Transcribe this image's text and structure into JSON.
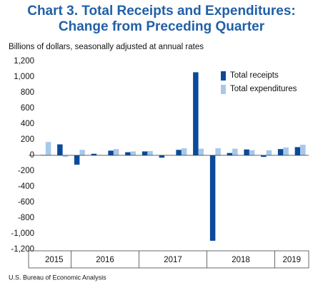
{
  "chart_data": {
    "type": "bar",
    "title": "Chart 3. Total Receipts and Expenditures:",
    "title_line2": "Change from Preceding Quarter",
    "subtitle": "Billions of dollars, seasonally adjusted at annual rates",
    "source": "U.S. Bureau of Economic Analysis",
    "categories": [
      "2015",
      null,
      "2016",
      null,
      null,
      null,
      "2017",
      null,
      null,
      null,
      "2018",
      null,
      null,
      null,
      "2019",
      null
    ],
    "series": [
      {
        "name": "Total receipts",
        "color": "#0b4a9a",
        "values": [
          5,
          140,
          -120,
          20,
          60,
          40,
          50,
          -30,
          70,
          1060,
          -1090,
          30,
          75,
          -20,
          80,
          105
        ]
      },
      {
        "name": "Total expenditures",
        "color": "#a8c8ea",
        "values": [
          170,
          -20,
          70,
          5,
          80,
          50,
          55,
          0,
          90,
          85,
          90,
          85,
          65,
          65,
          100,
          135
        ]
      }
    ],
    "ylim": [
      -1200,
      1200
    ],
    "yticks": [
      {
        "value": 1200,
        "label": "1,200"
      },
      {
        "value": 1000,
        "label": "1,000"
      },
      800,
      600,
      400,
      200,
      0,
      -200,
      -400,
      -600,
      -800,
      {
        "value": -1000,
        "label": "-1,000"
      },
      {
        "value": -1200,
        "label": "-1,200"
      }
    ],
    "legend": "upper-right",
    "grid": false
  }
}
